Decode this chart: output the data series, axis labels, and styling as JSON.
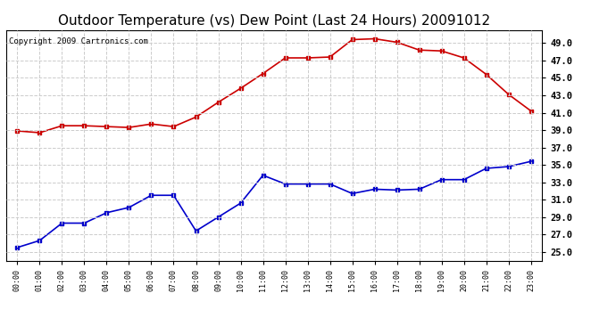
{
  "title": "Outdoor Temperature (vs) Dew Point (Last 24 Hours) 20091012",
  "copyright": "Copyright 2009 Cartronics.com",
  "x_labels": [
    "00:00",
    "01:00",
    "02:00",
    "03:00",
    "04:00",
    "05:00",
    "06:00",
    "07:00",
    "08:00",
    "09:00",
    "10:00",
    "11:00",
    "12:00",
    "13:00",
    "14:00",
    "15:00",
    "16:00",
    "17:00",
    "18:00",
    "19:00",
    "20:00",
    "21:00",
    "22:00",
    "23:00"
  ],
  "temp_values": [
    38.9,
    38.7,
    39.5,
    39.5,
    39.4,
    39.3,
    39.7,
    39.4,
    40.5,
    42.2,
    43.8,
    45.5,
    47.3,
    47.3,
    47.4,
    49.4,
    49.5,
    49.1,
    48.2,
    48.1,
    47.3,
    45.4,
    43.1,
    41.2
  ],
  "dew_values": [
    25.5,
    26.3,
    28.3,
    28.3,
    29.5,
    30.1,
    31.5,
    31.5,
    27.4,
    29.0,
    30.6,
    33.8,
    32.8,
    32.8,
    32.8,
    31.7,
    32.2,
    32.1,
    32.2,
    33.3,
    33.3,
    34.6,
    34.8,
    35.4
  ],
  "temp_color": "#cc0000",
  "dew_color": "#0000cc",
  "bg_color": "#ffffff",
  "grid_color": "#cccccc",
  "ylim": [
    24.0,
    50.5
  ],
  "ytick_start": 25.0,
  "ytick_end": 49.0,
  "ytick_step": 2.0,
  "title_fontsize": 11,
  "copyright_fontsize": 6.5,
  "marker": "s",
  "marker_size": 3
}
